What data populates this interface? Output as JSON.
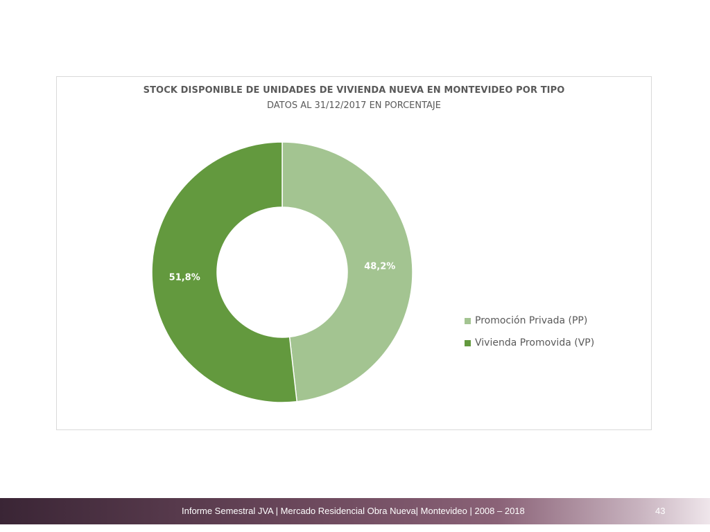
{
  "chart_data": {
    "type": "pie",
    "title": "STOCK DISPONIBLE DE UNIDADES DE VIVIENDA NUEVA EN MONTEVIDEO POR TIPO",
    "subtitle": "DATOS AL 31/12/2017 EN PORCENTAJE",
    "donut": true,
    "categories": [
      "Promoción Privada (PP)",
      "Vivienda Promovida (VP)"
    ],
    "values": [
      48.2,
      51.8
    ],
    "data_labels": [
      "48,2%",
      "51,8%"
    ],
    "colors": [
      "#a3c491",
      "#63993e"
    ],
    "legend_position": "right"
  },
  "footer": {
    "text": "Informe Semestral JVA | Mercado Residencial Obra Nueva| Montevideo | 2008 – 2018",
    "page_number": "43"
  }
}
